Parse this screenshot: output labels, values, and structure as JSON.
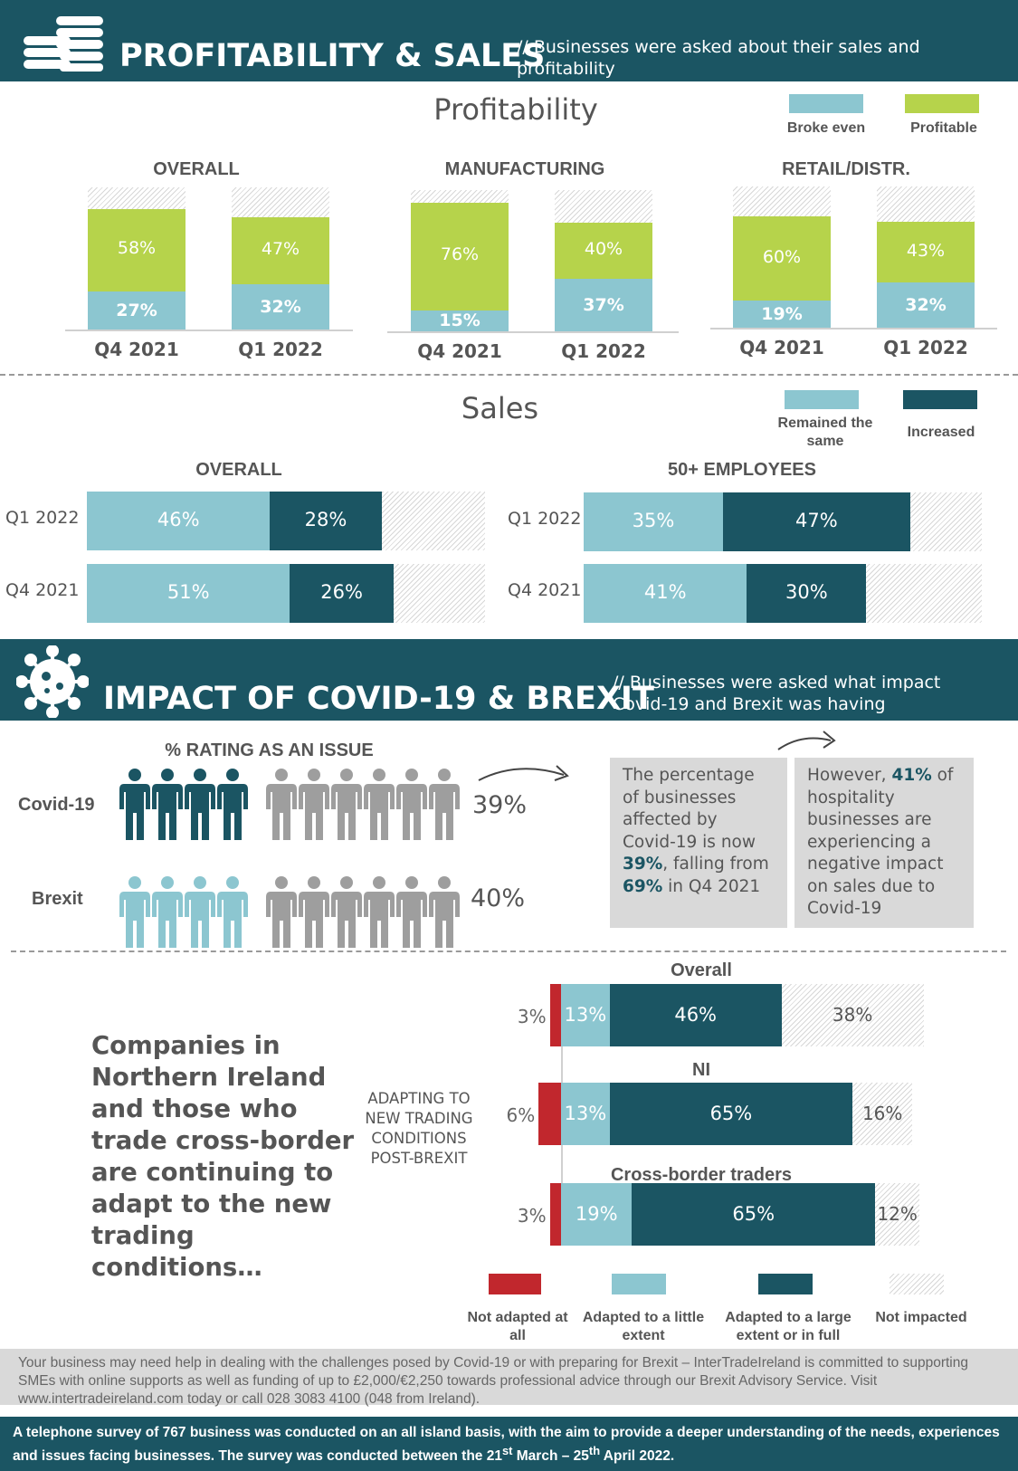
{
  "colors": {
    "dark_teal": "#1b5563",
    "light_teal": "#8cc6d0",
    "lime": "#b6d34b",
    "red": "#c1272d",
    "grey_person": "#9e9e9e",
    "person_brexit": "#8cc6d0"
  },
  "header1": {
    "title": "PROFITABILITY & SALES",
    "subtitle": "// Businesses were asked about their sales and profitability",
    "icon": "coins-icon"
  },
  "profitability": {
    "title": "Profitability",
    "legend": [
      {
        "label": "Broke even",
        "color": "#8cc6d0"
      },
      {
        "label": "Profitable",
        "color": "#b6d34b"
      }
    ]
  },
  "sales": {
    "title": "Sales",
    "legend": [
      {
        "label": "Remained the same",
        "color": "#8cc6d0"
      },
      {
        "label": "Increased",
        "color": "#1b5563"
      }
    ]
  },
  "header2": {
    "title": "IMPACT OF COVID-19 & BREXIT",
    "subtitle": "// Businesses were asked what impact Covid-19 and Brexit was having",
    "icon": "virus-icon"
  },
  "rating": {
    "title": "% RATING AS AN ISSUE",
    "rows": [
      {
        "label": "Covid-19",
        "value": "39%"
      },
      {
        "label": "Brexit",
        "value": "40%"
      }
    ]
  },
  "box1": {
    "p1": "The percentage of businesses affected by Covid-19 is now ",
    "v1": "39%",
    "p2": ", falling from ",
    "v2": "69%",
    "p3": " in Q4 2021"
  },
  "box2": {
    "p1": "However, ",
    "v1": "41%",
    "p2": " of hospitality businesses are experiencing a negative impact on sales due to Covid-19"
  },
  "adapting": {
    "headline": "Companies in Northern Ireland and those who trade cross-border are continuing to adapt to the new trading conditions…",
    "side_label": "ADAPTING TO NEW TRADING CONDITIONS POST-BREXIT",
    "legend": [
      {
        "label": "Not adapted at all",
        "color": "#c1272d"
      },
      {
        "label": "Adapted to a little extent",
        "color": "#8cc6d0"
      },
      {
        "label": "Adapted to a large extent or in full",
        "color": "#1b5563"
      },
      {
        "label": "Not impacted",
        "color": "hatch"
      }
    ]
  },
  "chart_data": [
    {
      "type": "bar",
      "stacked": true,
      "title": "OVERALL",
      "categories": [
        "Q4 2021",
        "Q1 2022"
      ],
      "series": [
        {
          "name": "Broke even",
          "values": [
            27,
            32
          ]
        },
        {
          "name": "Profitable",
          "values": [
            58,
            47
          ]
        }
      ],
      "ylim": [
        0,
        100
      ]
    },
    {
      "type": "bar",
      "stacked": true,
      "title": "MANUFACTURING",
      "categories": [
        "Q4 2021",
        "Q1 2022"
      ],
      "series": [
        {
          "name": "Broke even",
          "values": [
            15,
            37
          ]
        },
        {
          "name": "Profitable",
          "values": [
            76,
            40
          ]
        }
      ],
      "ylim": [
        0,
        100
      ]
    },
    {
      "type": "bar",
      "stacked": true,
      "title": "RETAIL/DISTR.",
      "categories": [
        "Q4 2021",
        "Q1 2022"
      ],
      "series": [
        {
          "name": "Broke even",
          "values": [
            19,
            32
          ]
        },
        {
          "name": "Profitable",
          "values": [
            60,
            43
          ]
        }
      ],
      "ylim": [
        0,
        100
      ]
    },
    {
      "type": "bar",
      "orientation": "horizontal",
      "stacked": true,
      "title": "OVERALL",
      "categories": [
        "Q1 2022",
        "Q4 2021"
      ],
      "series": [
        {
          "name": "Remained the same",
          "values": [
            46,
            51
          ]
        },
        {
          "name": "Increased",
          "values": [
            28,
            26
          ]
        }
      ],
      "xlim": [
        0,
        100
      ]
    },
    {
      "type": "bar",
      "orientation": "horizontal",
      "stacked": true,
      "title": "50+ EMPLOYEES",
      "categories": [
        "Q1 2022",
        "Q4 2021"
      ],
      "series": [
        {
          "name": "Remained the same",
          "values": [
            35,
            41
          ]
        },
        {
          "name": "Increased",
          "values": [
            47,
            30
          ]
        }
      ],
      "xlim": [
        0,
        100
      ]
    },
    {
      "type": "bar",
      "orientation": "horizontal",
      "stacked": true,
      "categories": [
        "Overall",
        "NI",
        "Cross-border traders"
      ],
      "series": [
        {
          "name": "Not adapted at all",
          "values": [
            3,
            6,
            3
          ]
        },
        {
          "name": "Adapted to a little extent",
          "values": [
            13,
            13,
            19
          ]
        },
        {
          "name": "Adapted to a large extent or in full",
          "values": [
            46,
            65,
            65
          ]
        },
        {
          "name": "Not impacted",
          "values": [
            38,
            16,
            12
          ]
        }
      ]
    }
  ],
  "footer": {
    "note": "Your business may need help in dealing with the challenges posed by Covid-19 or with preparing for Brexit – InterTradeIreland is committed to supporting SMEs with online supports as well as funding of up to £2,000/€2,250 towards professional advice through our Brexit Advisory Service. Visit www.intertradeireland.com today or call 028 3083 4100 (048 from Ireland).",
    "survey_a": "A telephone survey of 767 business was conducted on an all island basis, with the aim to provide a deeper understanding of the needs, experiences and issues facing businesses.  The survey was conducted between the 21",
    "sup1": "st",
    "survey_b": " March – 25",
    "sup2": "th",
    "survey_c": " April 2022."
  }
}
